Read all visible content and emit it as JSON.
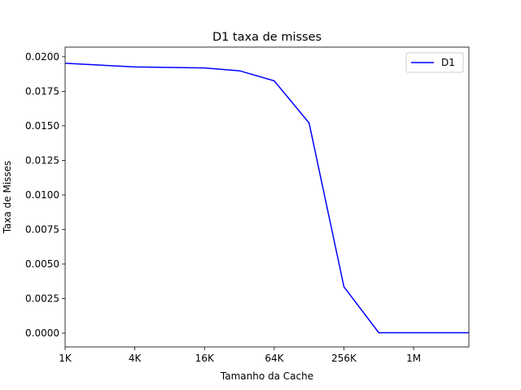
{
  "chart_data": {
    "type": "line",
    "title": "D1 taxa de misses",
    "xlabel": "Tamanho da Cache",
    "ylabel": "Taxa de Misses",
    "x_scale": "log2",
    "xlim": [
      "1K",
      "3M"
    ],
    "ylim": [
      -0.001,
      0.0207
    ],
    "x_ticks": [
      "1K",
      "4K",
      "16K",
      "64K",
      "256K",
      "1M"
    ],
    "y_ticks": [
      "0.0000",
      "0.0025",
      "0.0050",
      "0.0075",
      "0.0100",
      "0.0125",
      "0.0150",
      "0.0175",
      "0.0200"
    ],
    "grid": false,
    "legend_position": "top-right",
    "series": [
      {
        "name": "D1",
        "color": "#0000ff",
        "x": [
          "1K",
          "4K",
          "16K",
          "32K",
          "64K",
          "128K",
          "256K",
          "512K",
          "1M",
          "2M",
          "3M"
        ],
        "y": [
          0.01953,
          0.01927,
          0.01919,
          0.01899,
          0.01826,
          0.01521,
          0.00335,
          3e-05,
          3e-05,
          3e-05,
          3e-05
        ]
      }
    ]
  }
}
